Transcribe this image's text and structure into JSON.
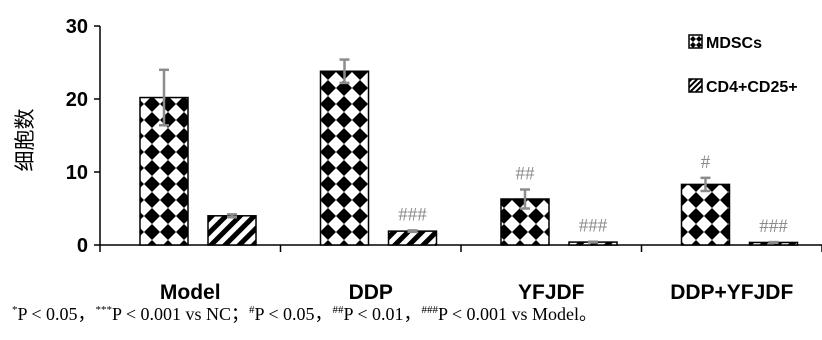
{
  "chart_data": {
    "type": "bar",
    "categories": [
      "Model",
      "DDP",
      "YFJDF",
      "DDP+YFJDF"
    ],
    "series": [
      {
        "name": "MDSCs",
        "values": [
          20.2,
          23.8,
          6.3,
          8.3
        ],
        "errors": [
          3.8,
          1.6,
          1.3,
          0.9
        ],
        "pattern": "diamond-checker"
      },
      {
        "name": "CD4+CD25+",
        "values": [
          4.0,
          1.9,
          0.4,
          0.35
        ],
        "errors": [
          0.2,
          0.1,
          0.05,
          0.05
        ],
        "pattern": "diagonal-stripes"
      }
    ],
    "annotations": [
      {
        "category": "DDP",
        "series": "CD4+CD25+",
        "text": "###"
      },
      {
        "category": "YFJDF",
        "series": "MDSCs",
        "text": "##"
      },
      {
        "category": "YFJDF",
        "series": "CD4+CD25+",
        "text": "###"
      },
      {
        "category": "DDP+YFJDF",
        "series": "MDSCs",
        "text": "#"
      },
      {
        "category": "DDP+YFJDF",
        "series": "CD4+CD25+",
        "text": "###"
      }
    ],
    "ylabel": "细胞数",
    "xlabel": "",
    "ylim": [
      0,
      30
    ],
    "yticks": [
      0,
      10,
      20,
      30
    ],
    "legend_position": "top-right",
    "grid": false,
    "colors": {
      "bar_fill": "#ffffff",
      "pattern": "#000000",
      "error_bar": "#8c8c8c",
      "annotation": "#8c8c8c"
    }
  },
  "footnote": {
    "s1_sup": "*",
    "s1": "P < 0.05，",
    "s2_sup": "***",
    "s2": "P < 0.001 vs NC；",
    "s3_sup": "#",
    "s3": "P < 0.05，",
    "s4_sup": "##",
    "s4": "P < 0.01，",
    "s5_sup": "###",
    "s5": "P < 0.001 vs Model。"
  }
}
